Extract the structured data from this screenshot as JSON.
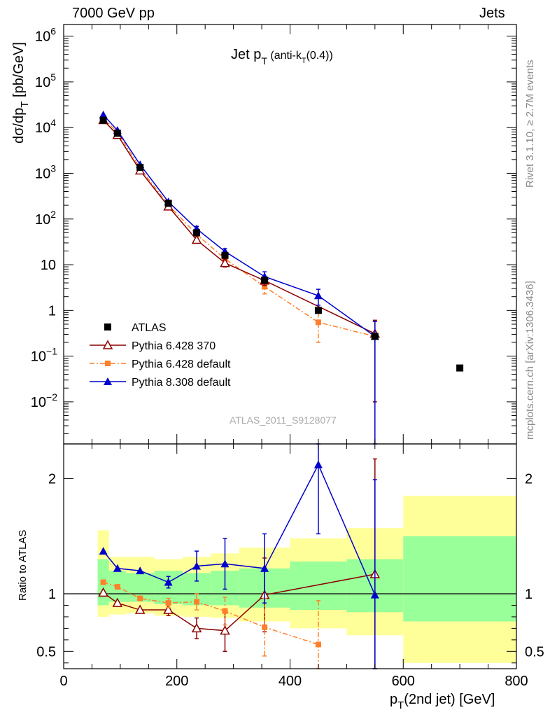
{
  "header": {
    "left": "7000 GeV pp",
    "right": "Jets"
  },
  "side_labels": {
    "rivet": "Rivet 3.1.10, ≥ 2.7M events",
    "mcplots": "mcplots.cern.ch [arXiv:1306.3436]"
  },
  "watermark": "ATLAS_2011_S9128077",
  "colors": {
    "atlas": "#000000",
    "pythia6_370": "#8b0000",
    "pythia6_default": "#ff7f2a",
    "pythia8": "#0000cc",
    "band_outer": "#ffff99",
    "band_inner": "#99ff99"
  },
  "chart_data": [
    {
      "type": "line",
      "title": "Jet p_T (anti-k_T(0.4))",
      "ylabel": "dσ/dp_T [pb/GeV]",
      "yscale": "log",
      "ylim": [
        0.0012,
        1800000
      ],
      "xlim": [
        0,
        800
      ],
      "y_ticks": [
        {
          "v": 0.01,
          "base": "10",
          "exp": "−2"
        },
        {
          "v": 0.1,
          "base": "10",
          "exp": "−1"
        },
        {
          "v": 1,
          "base": "1",
          "exp": ""
        },
        {
          "v": 10,
          "base": "10",
          "exp": ""
        },
        {
          "v": 100,
          "base": "10",
          "exp": "2"
        },
        {
          "v": 1000,
          "base": "10",
          "exp": "3"
        },
        {
          "v": 10000,
          "base": "10",
          "exp": "4"
        },
        {
          "v": 100000,
          "base": "10",
          "exp": "5"
        },
        {
          "v": 1000000,
          "base": "10",
          "exp": "6"
        }
      ],
      "legend_position": "lower-left",
      "series": [
        {
          "name": "ATLAS",
          "marker": "square",
          "x": [
            70,
            95,
            135,
            185,
            235,
            285,
            355,
            450,
            550,
            700
          ],
          "y": [
            14500,
            7500,
            1350,
            220,
            50,
            16,
            4.6,
            1.0,
            0.27,
            0.055
          ]
        },
        {
          "name": "Pythia 6.428 370",
          "marker": "open-triangle",
          "x": [
            70,
            95,
            135,
            185,
            235,
            285,
            355,
            450,
            550
          ],
          "y": [
            14600,
            6900,
            1150,
            188,
            35,
            10.9,
            4.5,
            null,
            0.31
          ],
          "err": [
            null,
            null,
            null,
            null,
            null,
            2,
            1,
            null,
            0.3
          ]
        },
        {
          "name": "Pythia 6.428 default",
          "marker": "square-small",
          "x": [
            70,
            95,
            135,
            185,
            235,
            285,
            355,
            450,
            550
          ],
          "y": [
            16000,
            7900,
            1300,
            202,
            46,
            13.5,
            3.3,
            0.55,
            0.27
          ],
          "err": [
            null,
            null,
            null,
            null,
            6,
            3,
            1,
            0.35,
            null
          ]
        },
        {
          "name": "Pythia 8.308 default",
          "marker": "filled-triangle",
          "x": [
            70,
            95,
            135,
            185,
            235,
            285,
            355,
            450,
            550
          ],
          "y": [
            19000,
            8700,
            1550,
            238,
            61,
            19.5,
            5.5,
            2.1,
            0.27
          ],
          "err": [
            null,
            null,
            null,
            null,
            8,
            3,
            1.5,
            0.8,
            0.3
          ]
        }
      ]
    },
    {
      "type": "line",
      "ylabel": "Ratio to ATLAS",
      "ylim": [
        0.35,
        2.3
      ],
      "xlim": [
        0,
        800
      ],
      "xlabel": "p_T(2nd jet) [GeV]",
      "x_ticks": [
        0,
        200,
        400,
        600,
        800
      ],
      "y_ticks": [
        0.5,
        1,
        2
      ],
      "bands": {
        "edges": [
          60,
          80,
          110,
          160,
          210,
          260,
          310,
          400,
          500,
          600,
          800
        ],
        "inner": [
          [
            0.9,
            1.3
          ],
          [
            0.93,
            1.2
          ],
          [
            0.93,
            1.18
          ],
          [
            0.91,
            1.2
          ],
          [
            0.9,
            1.18
          ],
          [
            0.9,
            1.2
          ],
          [
            0.88,
            1.22
          ],
          [
            0.86,
            1.28
          ],
          [
            0.84,
            1.3
          ],
          [
            0.76,
            1.5
          ]
        ],
        "outer": [
          [
            0.8,
            1.55
          ],
          [
            0.82,
            1.32
          ],
          [
            0.83,
            1.32
          ],
          [
            0.81,
            1.3
          ],
          [
            0.8,
            1.32
          ],
          [
            0.79,
            1.35
          ],
          [
            0.76,
            1.4
          ],
          [
            0.7,
            1.48
          ],
          [
            0.64,
            1.57
          ],
          [
            0.4,
            1.85
          ]
        ]
      },
      "series": [
        {
          "name": "Pythia 6.428 370",
          "x": [
            70,
            95,
            135,
            185,
            235,
            285,
            355,
            550
          ],
          "y": [
            1.01,
            0.92,
            0.86,
            0.86,
            0.7,
            0.68,
            0.99,
            1.17
          ],
          "err": [
            null,
            null,
            null,
            0.05,
            0.09,
            0.18,
            0.32,
            1.0
          ]
        },
        {
          "name": "Pythia 6.428 default",
          "x": [
            70,
            95,
            135,
            185,
            235,
            285,
            355,
            450
          ],
          "y": [
            1.1,
            1.06,
            0.96,
            0.92,
            0.93,
            0.85,
            0.71,
            0.56
          ],
          "err": [
            null,
            null,
            null,
            0.04,
            0.07,
            0.12,
            0.25,
            0.38
          ]
        },
        {
          "name": "Pythia 8.308 default",
          "x": [
            70,
            95,
            135,
            185,
            235,
            285,
            355,
            450,
            550
          ],
          "y": [
            1.37,
            1.22,
            1.2,
            1.1,
            1.24,
            1.26,
            1.22,
            2.12,
            0.99
          ],
          "err": [
            null,
            null,
            null,
            0.05,
            0.13,
            0.22,
            0.3,
            0.6,
            1.0
          ]
        }
      ]
    }
  ]
}
